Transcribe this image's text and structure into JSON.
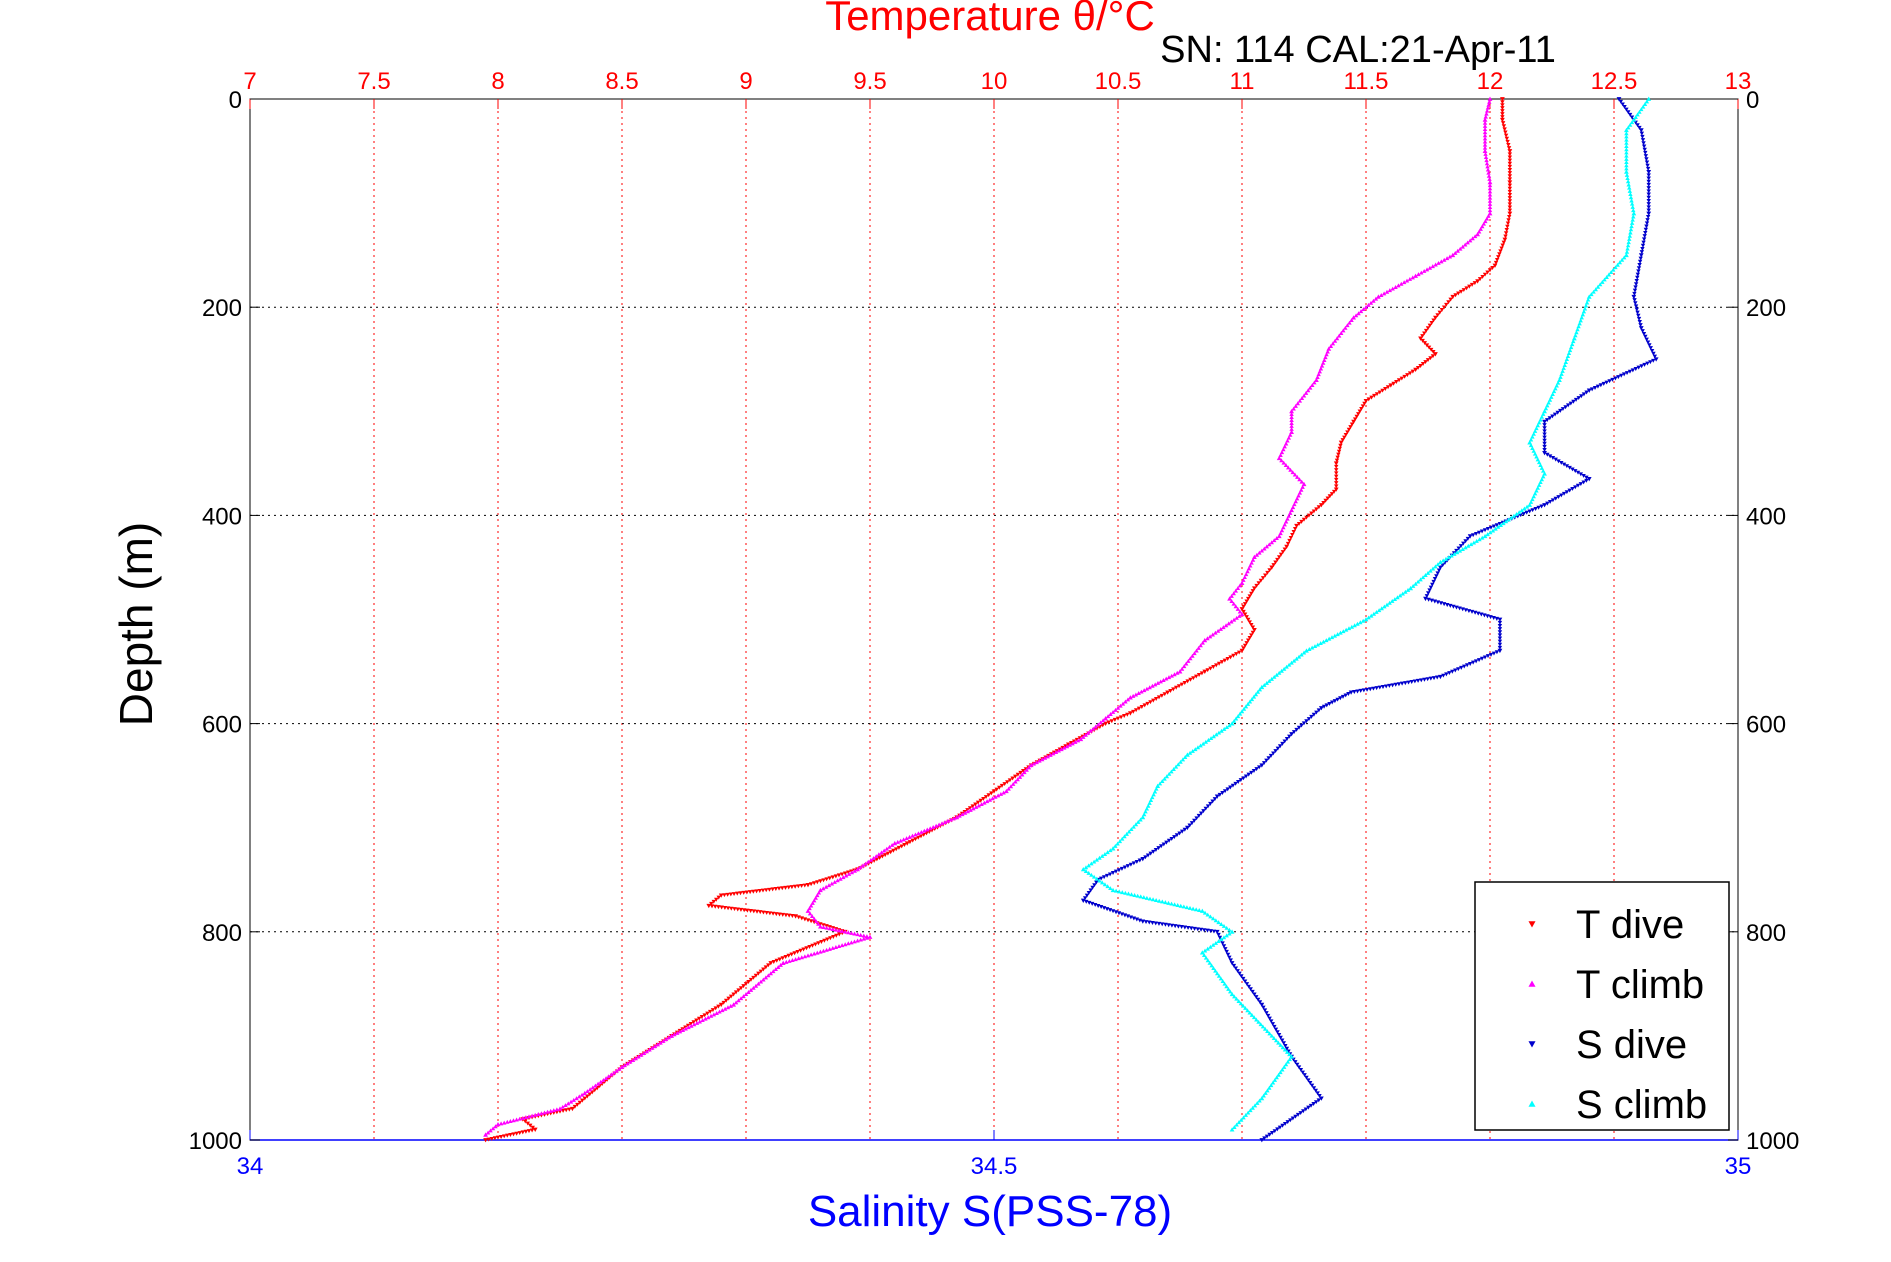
{
  "chart_data": {
    "type": "scatter",
    "title": "Temperature θ/°C",
    "subtitle": "SN: 114  CAL:21-Apr-11",
    "ylabel": "Depth (m)",
    "xlabel": "Salinity S(PSS-78)",
    "grid": true,
    "legend_position": "bottom-right",
    "colors": {
      "temperature_axis": "#ff0000",
      "salinity_axis": "#0000ff",
      "t_dive": "#ff0000",
      "t_climb": "#ff00ff",
      "s_dive": "#0000cc",
      "s_climb": "#00ffff",
      "grid": "#000000"
    },
    "axes": {
      "temperature": {
        "range": [
          7,
          13
        ],
        "ticks": [
          "7",
          "7.5",
          "8",
          "8.5",
          "9",
          "9.5",
          "10",
          "10.5",
          "11",
          "11.5",
          "12",
          "12.5",
          "13"
        ]
      },
      "salinity": {
        "range": [
          34,
          35
        ],
        "ticks": [
          "34",
          "34.5",
          "35"
        ]
      },
      "depth": {
        "range": [
          0,
          1000
        ],
        "ticks": [
          "0",
          "200",
          "400",
          "600",
          "800",
          "1000"
        ]
      }
    },
    "series": [
      {
        "name": "T dive",
        "axis": "temperature",
        "marker": "triangle-down",
        "points": [
          [
            12.05,
            0
          ],
          [
            12.05,
            20
          ],
          [
            12.08,
            50
          ],
          [
            12.08,
            80
          ],
          [
            12.08,
            110
          ],
          [
            12.06,
            135
          ],
          [
            12.02,
            160
          ],
          [
            11.95,
            175
          ],
          [
            11.85,
            190
          ],
          [
            11.78,
            210
          ],
          [
            11.72,
            230
          ],
          [
            11.78,
            245
          ],
          [
            11.7,
            260
          ],
          [
            11.6,
            275
          ],
          [
            11.5,
            290
          ],
          [
            11.45,
            310
          ],
          [
            11.4,
            330
          ],
          [
            11.38,
            350
          ],
          [
            11.38,
            375
          ],
          [
            11.32,
            390
          ],
          [
            11.22,
            410
          ],
          [
            11.18,
            430
          ],
          [
            11.12,
            450
          ],
          [
            11.05,
            470
          ],
          [
            11.0,
            490
          ],
          [
            11.05,
            510
          ],
          [
            11.0,
            530
          ],
          [
            10.85,
            550
          ],
          [
            10.7,
            570
          ],
          [
            10.55,
            590
          ],
          [
            10.45,
            600
          ],
          [
            10.3,
            620
          ],
          [
            10.15,
            640
          ],
          [
            10.0,
            665
          ],
          [
            9.85,
            690
          ],
          [
            9.65,
            715
          ],
          [
            9.45,
            740
          ],
          [
            9.25,
            755
          ],
          [
            8.9,
            765
          ],
          [
            8.85,
            775
          ],
          [
            9.2,
            785
          ],
          [
            9.4,
            800
          ],
          [
            9.1,
            830
          ],
          [
            8.9,
            870
          ],
          [
            8.7,
            900
          ],
          [
            8.5,
            930
          ],
          [
            8.4,
            950
          ],
          [
            8.3,
            970
          ],
          [
            8.1,
            980
          ],
          [
            8.15,
            990
          ],
          [
            7.95,
            1000
          ]
        ]
      },
      {
        "name": "T climb",
        "axis": "temperature",
        "marker": "triangle-up",
        "points": [
          [
            12.0,
            0
          ],
          [
            11.98,
            20
          ],
          [
            11.98,
            50
          ],
          [
            12.0,
            80
          ],
          [
            12.0,
            110
          ],
          [
            11.95,
            130
          ],
          [
            11.85,
            150
          ],
          [
            11.7,
            170
          ],
          [
            11.55,
            190
          ],
          [
            11.45,
            210
          ],
          [
            11.35,
            240
          ],
          [
            11.3,
            270
          ],
          [
            11.2,
            300
          ],
          [
            11.2,
            320
          ],
          [
            11.15,
            345
          ],
          [
            11.25,
            370
          ],
          [
            11.2,
            395
          ],
          [
            11.15,
            420
          ],
          [
            11.05,
            440
          ],
          [
            11.0,
            465
          ],
          [
            10.95,
            480
          ],
          [
            11.0,
            495
          ],
          [
            10.85,
            520
          ],
          [
            10.75,
            550
          ],
          [
            10.55,
            575
          ],
          [
            10.45,
            595
          ],
          [
            10.35,
            615
          ],
          [
            10.15,
            640
          ],
          [
            10.05,
            665
          ],
          [
            9.85,
            690
          ],
          [
            9.6,
            715
          ],
          [
            9.45,
            740
          ],
          [
            9.3,
            760
          ],
          [
            9.25,
            780
          ],
          [
            9.3,
            795
          ],
          [
            9.5,
            805
          ],
          [
            9.15,
            830
          ],
          [
            8.95,
            870
          ],
          [
            8.7,
            900
          ],
          [
            8.5,
            930
          ],
          [
            8.35,
            955
          ],
          [
            8.25,
            970
          ],
          [
            8.0,
            985
          ],
          [
            7.95,
            995
          ]
        ]
      },
      {
        "name": "S dive",
        "axis": "salinity",
        "marker": "triangle-down",
        "points": [
          [
            34.92,
            0
          ],
          [
            34.935,
            30
          ],
          [
            34.94,
            70
          ],
          [
            34.94,
            110
          ],
          [
            34.935,
            150
          ],
          [
            34.93,
            190
          ],
          [
            34.935,
            220
          ],
          [
            34.945,
            250
          ],
          [
            34.9,
            280
          ],
          [
            34.87,
            310
          ],
          [
            34.87,
            340
          ],
          [
            34.9,
            365
          ],
          [
            34.87,
            390
          ],
          [
            34.82,
            420
          ],
          [
            34.8,
            450
          ],
          [
            34.79,
            480
          ],
          [
            34.84,
            500
          ],
          [
            34.84,
            530
          ],
          [
            34.8,
            555
          ],
          [
            34.74,
            570
          ],
          [
            34.72,
            585
          ],
          [
            34.7,
            610
          ],
          [
            34.68,
            640
          ],
          [
            34.65,
            670
          ],
          [
            34.63,
            700
          ],
          [
            34.6,
            730
          ],
          [
            34.57,
            750
          ],
          [
            34.56,
            770
          ],
          [
            34.6,
            790
          ],
          [
            34.65,
            800
          ],
          [
            34.66,
            830
          ],
          [
            34.68,
            870
          ],
          [
            34.7,
            920
          ],
          [
            34.72,
            960
          ],
          [
            34.68,
            1000
          ]
        ]
      },
      {
        "name": "S climb",
        "axis": "salinity",
        "marker": "triangle-up",
        "points": [
          [
            34.94,
            0
          ],
          [
            34.925,
            30
          ],
          [
            34.925,
            70
          ],
          [
            34.93,
            110
          ],
          [
            34.925,
            150
          ],
          [
            34.9,
            190
          ],
          [
            34.89,
            230
          ],
          [
            34.88,
            270
          ],
          [
            34.87,
            300
          ],
          [
            34.86,
            330
          ],
          [
            34.87,
            360
          ],
          [
            34.86,
            390
          ],
          [
            34.83,
            420
          ],
          [
            34.8,
            445
          ],
          [
            34.78,
            470
          ],
          [
            34.75,
            500
          ],
          [
            34.71,
            530
          ],
          [
            34.68,
            565
          ],
          [
            34.66,
            600
          ],
          [
            34.63,
            630
          ],
          [
            34.61,
            660
          ],
          [
            34.6,
            690
          ],
          [
            34.58,
            720
          ],
          [
            34.56,
            740
          ],
          [
            34.58,
            760
          ],
          [
            34.64,
            780
          ],
          [
            34.66,
            800
          ],
          [
            34.64,
            820
          ],
          [
            34.66,
            860
          ],
          [
            34.7,
            920
          ],
          [
            34.68,
            960
          ],
          [
            34.66,
            990
          ]
        ]
      }
    ]
  }
}
